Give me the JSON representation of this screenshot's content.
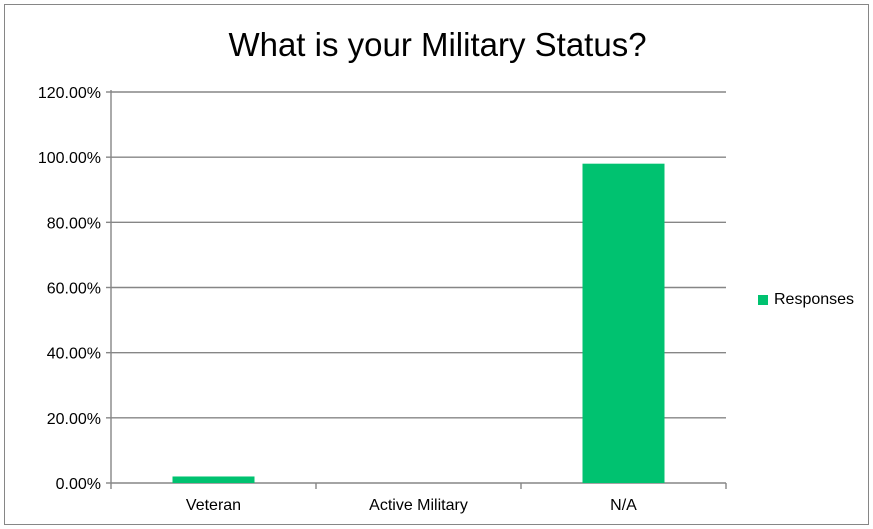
{
  "chart_data": {
    "type": "bar",
    "title": "What is your Military Status?",
    "xlabel": "",
    "ylabel": "",
    "categories": [
      "Veteran",
      "Active Military",
      "N/A"
    ],
    "series": [
      {
        "name": "Responses",
        "values": [
          0.02,
          0.0,
          0.98
        ]
      }
    ],
    "ylim": [
      0,
      1.2
    ],
    "yticks": [
      0,
      0.2,
      0.4,
      0.6,
      0.8,
      1.0,
      1.2
    ],
    "ytick_labels": [
      "0.00%",
      "20.00%",
      "40.00%",
      "60.00%",
      "80.00%",
      "100.00%",
      "120.00%"
    ],
    "grid": true,
    "legend_position": "right",
    "bar_color": "#00c270",
    "gridline_color": "#868686"
  }
}
